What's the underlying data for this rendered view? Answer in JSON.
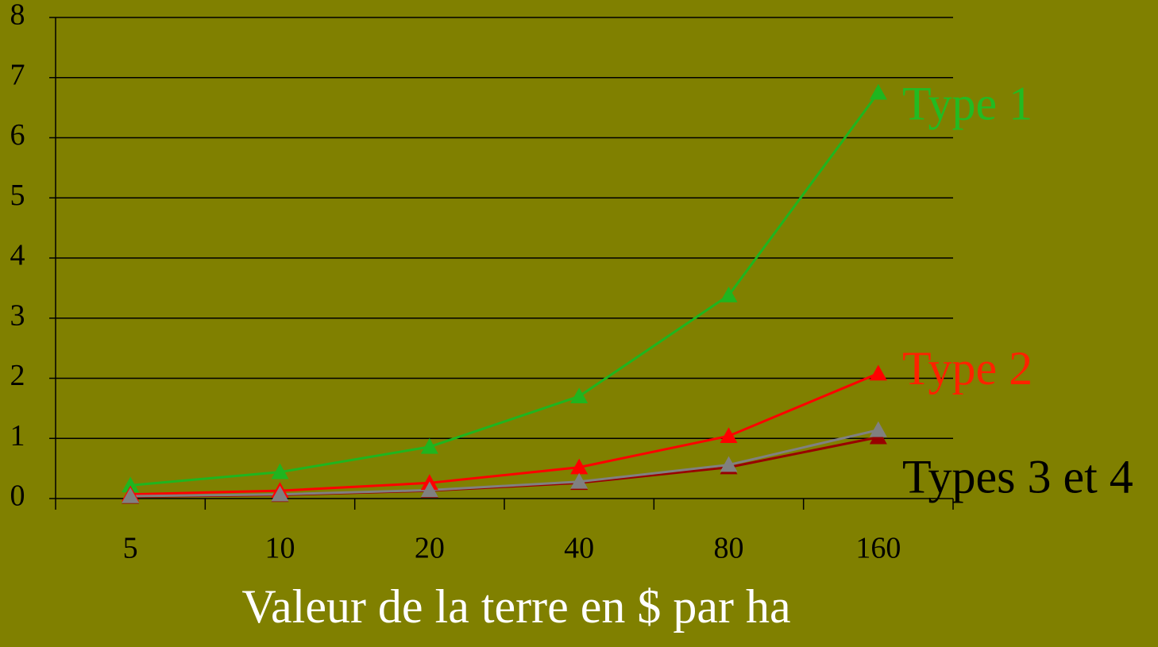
{
  "chart_data": {
    "type": "line",
    "x_label": "Valeur de la terre en $ par ha",
    "categories": [
      "5",
      "10",
      "20",
      "40",
      "80",
      "160"
    ],
    "series": [
      {
        "color": "#1fb51f",
        "values": [
          0.22,
          0.44,
          0.86,
          1.7,
          3.38,
          6.75
        ]
      },
      {
        "color": "#ff0000",
        "values": [
          0.07,
          0.13,
          0.26,
          0.52,
          1.04,
          2.08
        ]
      },
      {
        "color": "#990000",
        "values": [
          0.03,
          0.06,
          0.13,
          0.26,
          0.52,
          1.02
        ]
      },
      {
        "color": "#808080",
        "values": [
          0.04,
          0.07,
          0.14,
          0.28,
          0.56,
          1.14
        ]
      }
    ],
    "annotations": [
      {
        "text": "Type 1",
        "color": "#22bb22"
      },
      {
        "text": "Type 2",
        "color": "#ff2200"
      },
      {
        "text": "Types 3 et 4",
        "color": "#000000"
      }
    ],
    "ylim": [
      0,
      8
    ],
    "yticks": [
      0,
      1,
      2,
      3,
      4,
      5,
      6,
      7,
      8
    ],
    "grid": true
  }
}
